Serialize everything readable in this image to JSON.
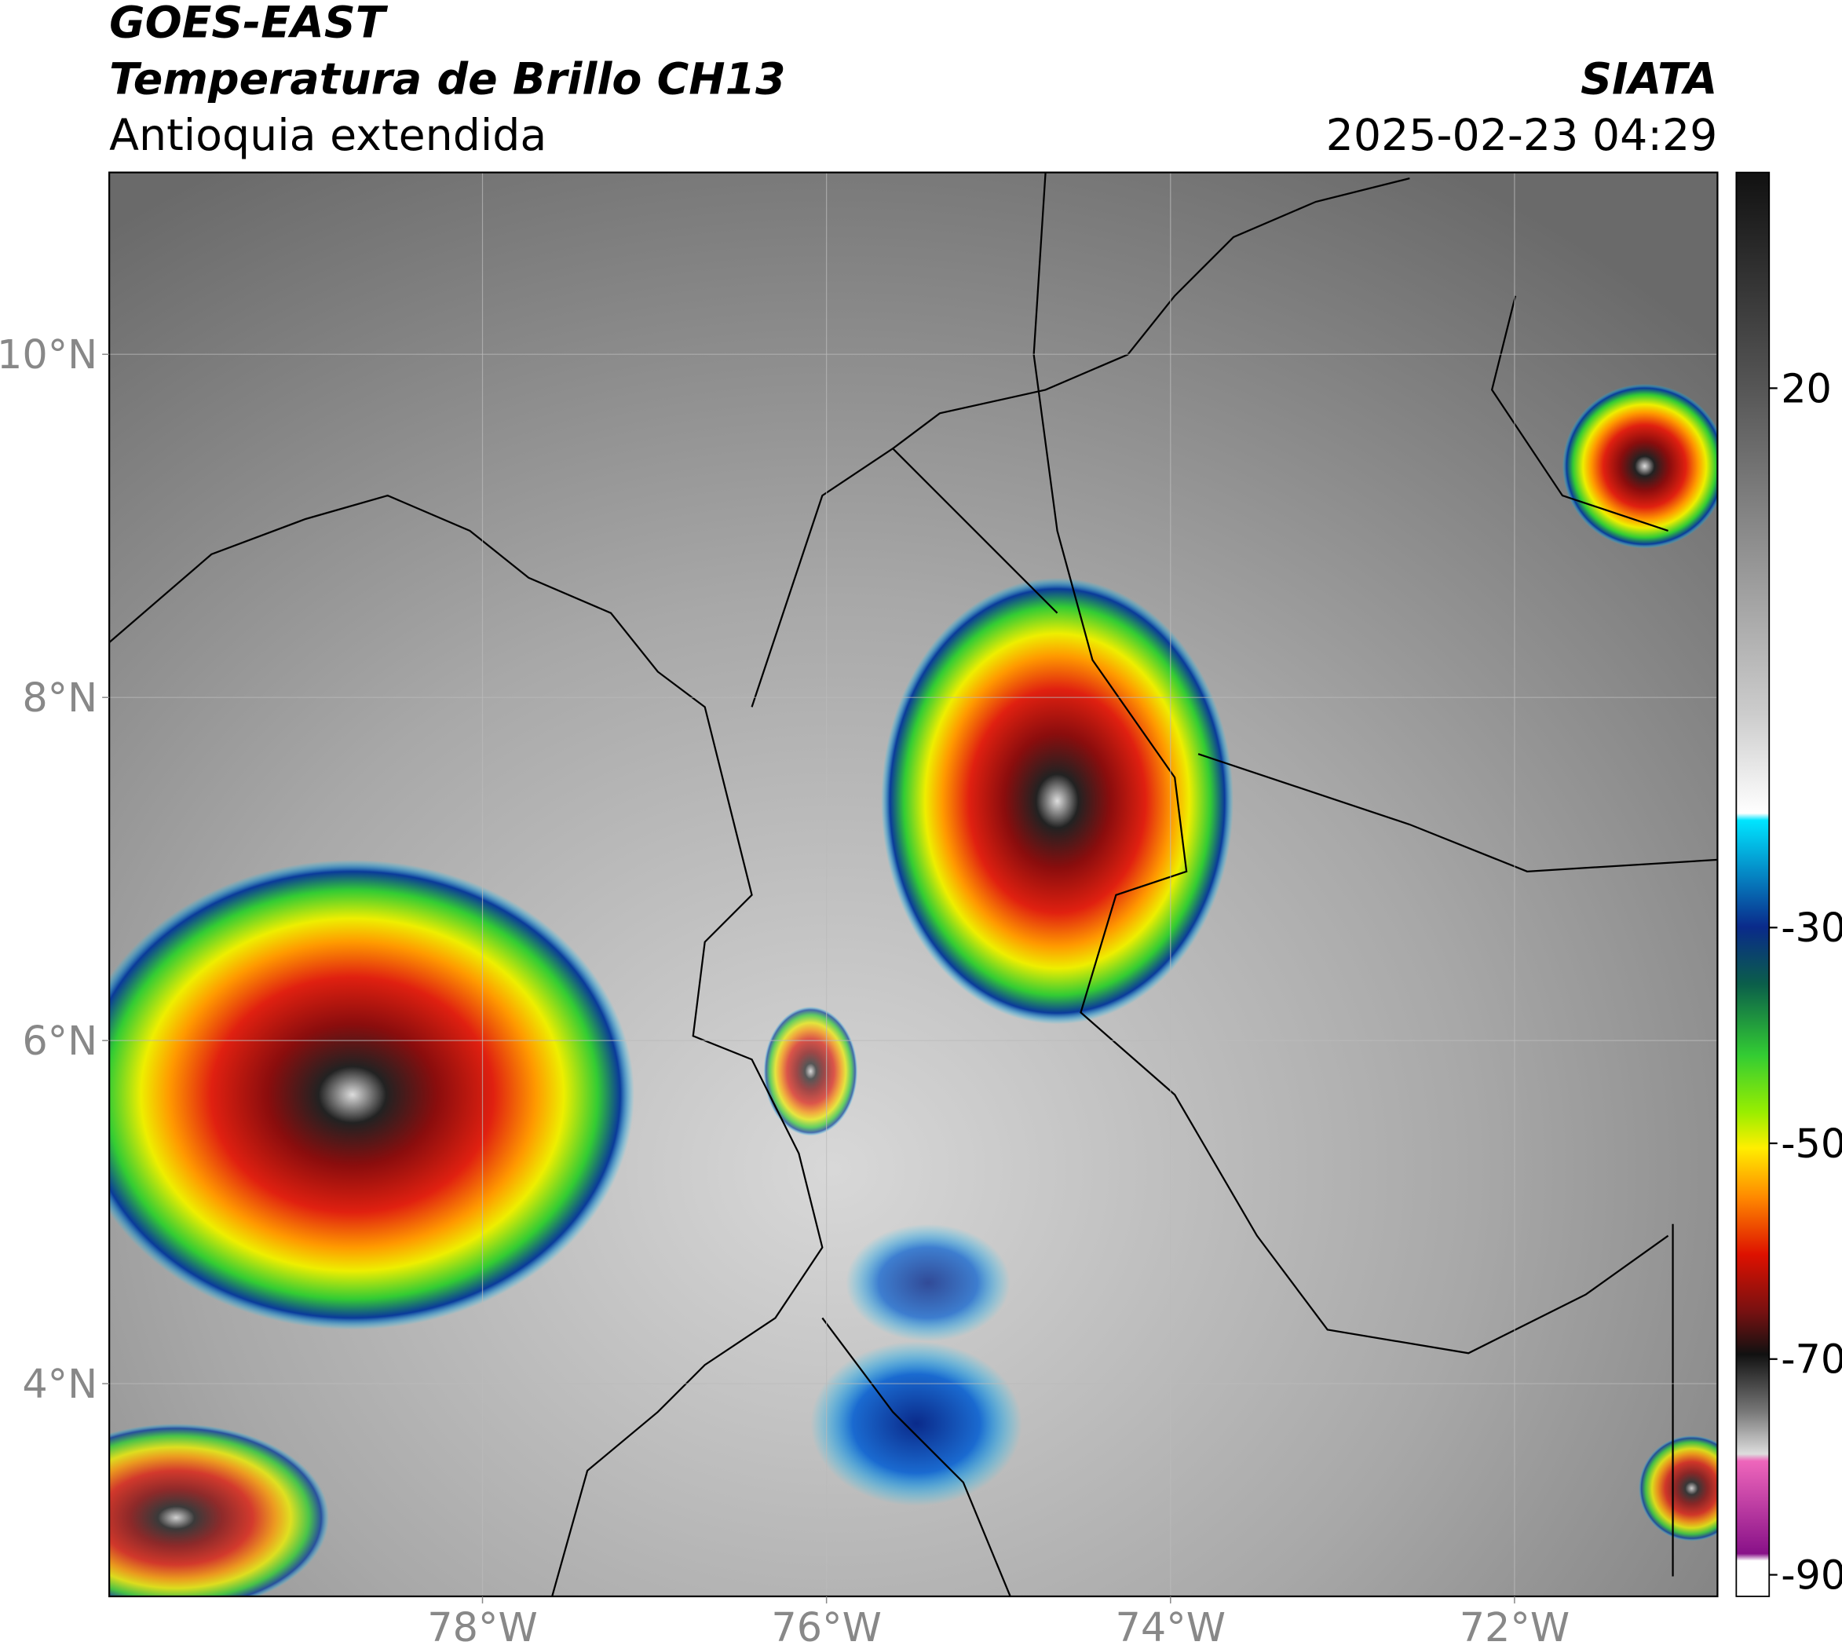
{
  "header": {
    "title": "GOES-EAST",
    "subtitle": "Temperatura de Brillo CH13",
    "region": "Antioquia extendida",
    "source": "SIATA",
    "timestamp": "2025-02-23 04:29"
  },
  "map": {
    "xlim": [
      -80.17,
      -70.82
    ],
    "ylim": [
      2.76,
      11.06
    ],
    "xticks": [
      {
        "value": -78,
        "label": "78°W"
      },
      {
        "value": -76,
        "label": "76°W"
      },
      {
        "value": -74,
        "label": "74°W"
      },
      {
        "value": -72,
        "label": "72°W"
      }
    ],
    "yticks": [
      {
        "value": 4,
        "label": "4°N"
      },
      {
        "value": 6,
        "label": "6°N"
      },
      {
        "value": 8,
        "label": "8°N"
      },
      {
        "value": 10,
        "label": "10°N"
      }
    ],
    "grid": true
  },
  "colorbar": {
    "lim": [
      -92,
      40
    ],
    "ticks": [
      20,
      -30,
      -50,
      -70,
      -90
    ]
  }
}
